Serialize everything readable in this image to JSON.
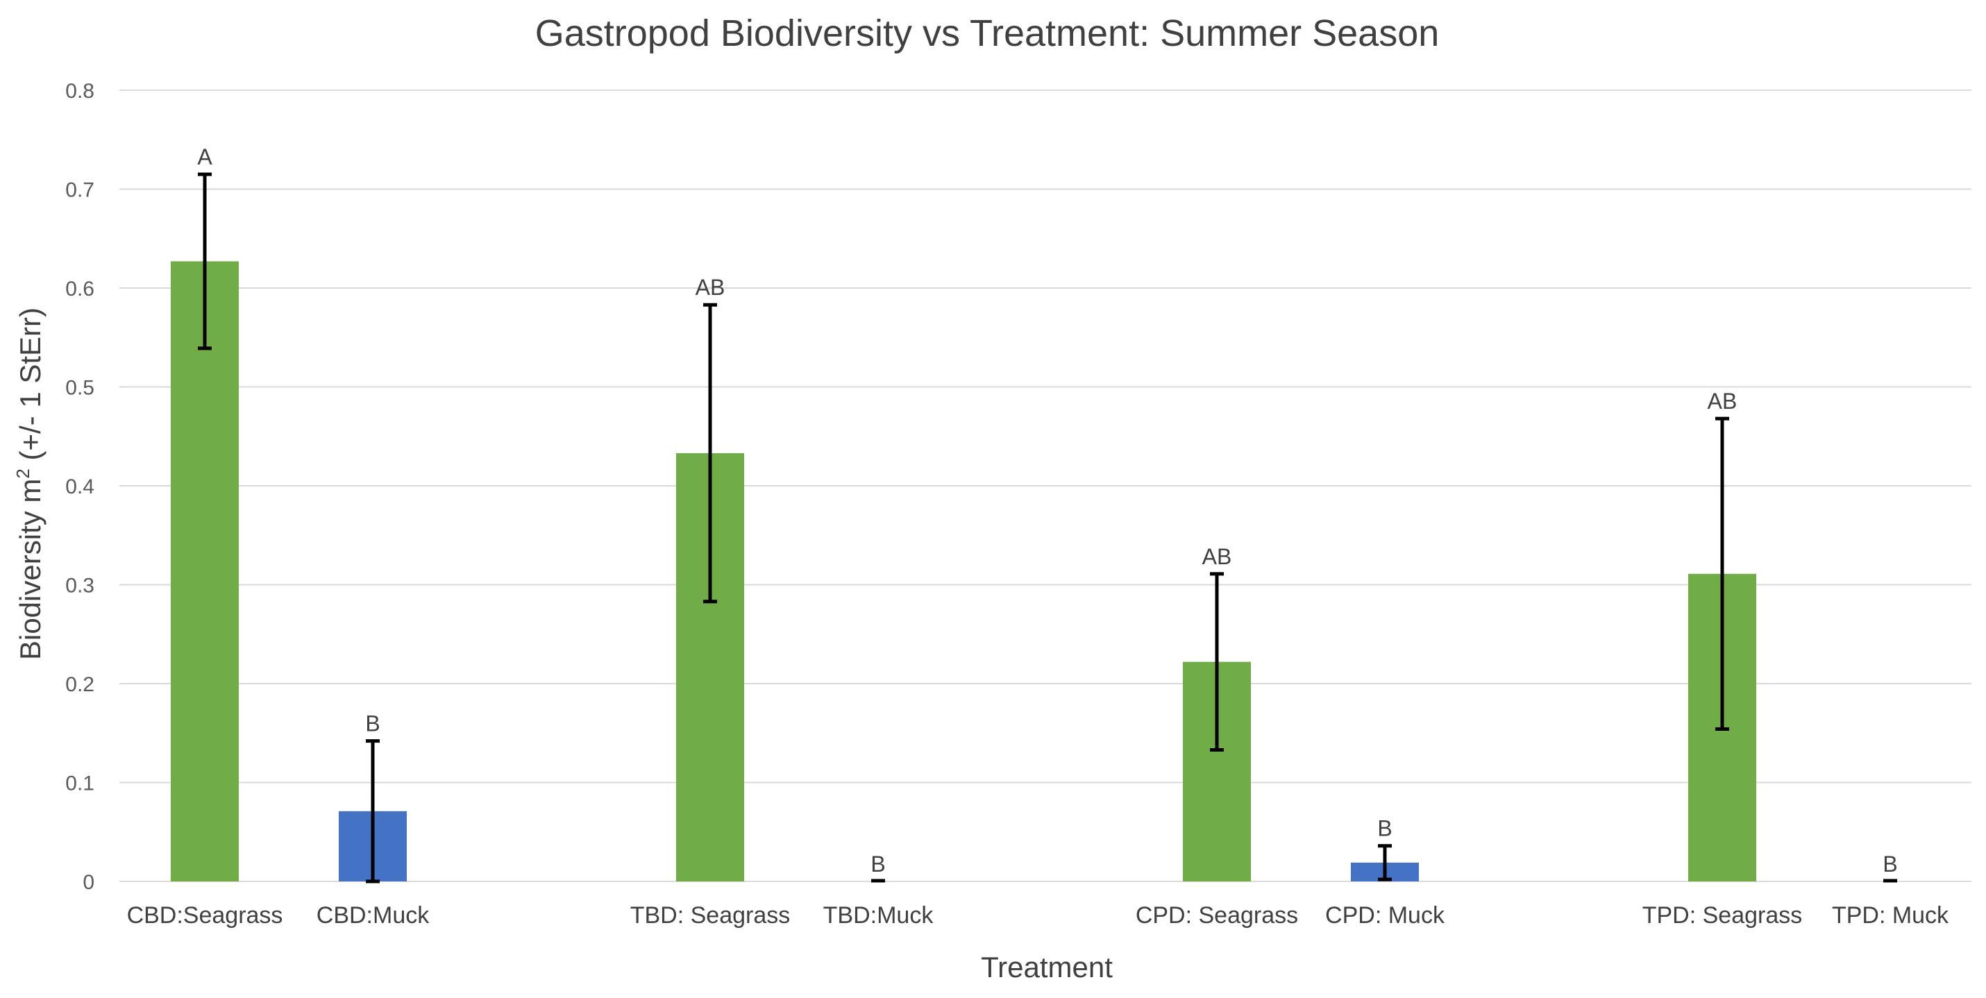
{
  "chart_data": {
    "type": "bar",
    "title": "Gastropod Biodiversity vs Treatment: Summer Season",
    "xlabel": "Treatment",
    "ylabel_main": "Biodiversity m",
    "ylabel_sup": "2",
    "ylabel_rest": " (+/- 1 StErr)",
    "ylim": [
      0,
      0.8
    ],
    "yticks": [
      {
        "value": 0,
        "label": "0"
      },
      {
        "value": 0.1,
        "label": "0.1"
      },
      {
        "value": 0.2,
        "label": "0.2"
      },
      {
        "value": 0.3,
        "label": "0.3"
      },
      {
        "value": 0.4,
        "label": "0.4"
      },
      {
        "value": 0.5,
        "label": "0.5"
      },
      {
        "value": 0.6,
        "label": "0.6"
      },
      {
        "value": 0.7,
        "label": "0.7"
      },
      {
        "value": 0.8,
        "label": "0.8"
      }
    ],
    "grid": true,
    "colors": {
      "seagrass": "#70ad47",
      "muck": "#4472c4"
    },
    "bars": [
      {
        "category": "CBD:Seagrass",
        "value": 0.627,
        "error": 0.088,
        "letter": "A",
        "color": "seagrass"
      },
      {
        "category": "CBD:Muck",
        "value": 0.071,
        "error": 0.071,
        "letter": "B",
        "color": "muck"
      },
      {
        "category": "TBD: Seagrass",
        "value": 0.433,
        "error": 0.15,
        "letter": "AB",
        "color": "seagrass"
      },
      {
        "category": "TBD:Muck",
        "value": 0,
        "error": 0,
        "letter": "B",
        "color": "muck"
      },
      {
        "category": "CPD: Seagrass",
        "value": 0.222,
        "error": 0.089,
        "letter": "AB",
        "color": "seagrass"
      },
      {
        "category": "CPD: Muck",
        "value": 0.019,
        "error": 0.017,
        "letter": "B",
        "color": "muck"
      },
      {
        "category": "TPD: Seagrass",
        "value": 0.311,
        "error": 0.157,
        "letter": "AB",
        "color": "seagrass"
      },
      {
        "category": "TPD: Muck",
        "value": 0,
        "error": 0,
        "letter": "B",
        "color": "muck"
      }
    ]
  }
}
